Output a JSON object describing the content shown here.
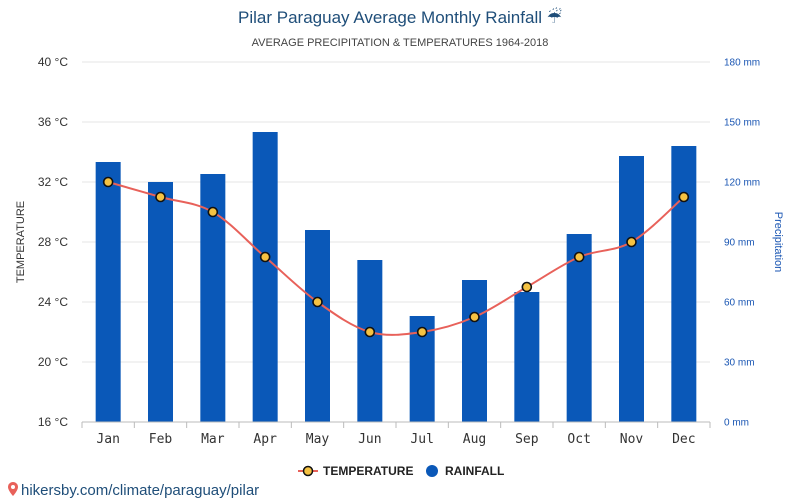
{
  "chart_data": {
    "type": "bar",
    "title": "Pilar Paraguay Average Monthly Rainfall ☔",
    "subtitle": "AVERAGE PRECIPITATION & TEMPERATURES 1964-2018",
    "categories": [
      "Jan",
      "Feb",
      "Mar",
      "Apr",
      "May",
      "Jun",
      "Jul",
      "Aug",
      "Sep",
      "Oct",
      "Nov",
      "Dec"
    ],
    "series": [
      {
        "name": "RAINFALL",
        "type": "bar",
        "axis": "right",
        "unit": "mm",
        "color": "#0a58b8",
        "values": [
          130,
          120,
          124,
          145,
          96,
          81,
          53,
          71,
          65,
          94,
          133,
          138
        ]
      },
      {
        "name": "TEMPERATURE",
        "type": "line",
        "axis": "left",
        "unit": "°C",
        "color": "#e8615a",
        "values": [
          32,
          31,
          30,
          27,
          24,
          22,
          22,
          23,
          25,
          27,
          28,
          31
        ]
      }
    ],
    "y_left": {
      "label": "TEMPERATURE",
      "min": 16,
      "max": 40,
      "ticks": [
        "16 °C",
        "20 °C",
        "24 °C",
        "28 °C",
        "32 °C",
        "36 °C",
        "40 °C"
      ]
    },
    "y_right": {
      "label": "Precipitation",
      "min": 0,
      "max": 180,
      "ticks": [
        "0 mm",
        "30 mm",
        "60 mm",
        "90 mm",
        "120 mm",
        "150 mm",
        "180 mm"
      ]
    },
    "grid": true,
    "legend_position": "bottom-center"
  },
  "legend": {
    "temperature": "TEMPERATURE",
    "rainfall": "RAINFALL"
  },
  "footer": {
    "link": "hikersby.com/climate/paraguay/pilar",
    "icon": "map-pin-icon"
  },
  "colors": {
    "bar": "#0a58b8",
    "line": "#e8615a",
    "marker_fill": "#f5c242",
    "marker_stroke": "#111111",
    "title": "#1f4e79",
    "right_axis": "#1a56b3"
  }
}
